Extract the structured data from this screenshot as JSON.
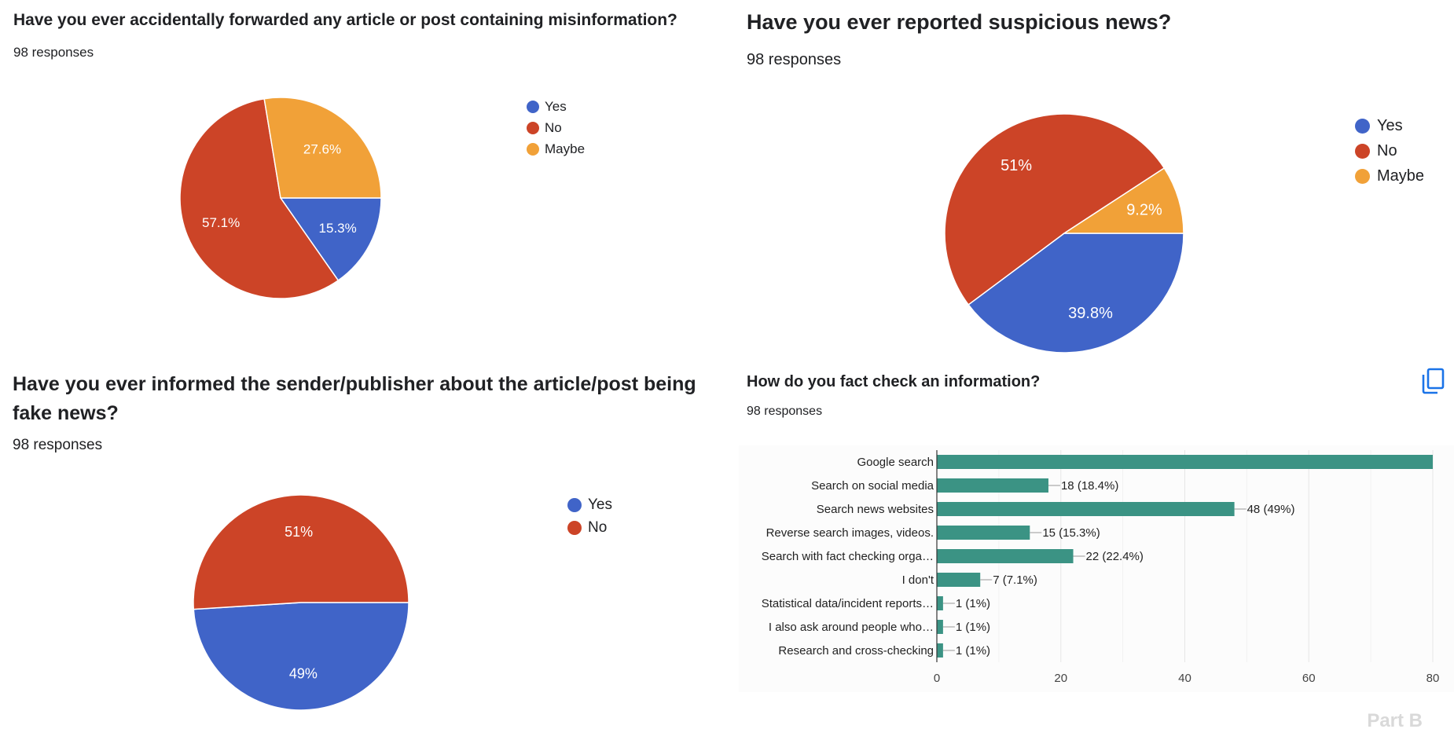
{
  "colors": {
    "yes": "#4064c8",
    "no": "#cc4427",
    "maybe": "#f1a138",
    "bar": "#3b9384"
  },
  "panels": [
    {
      "title": "Have you ever accidentally forwarded any article or post containing misinformation?",
      "responses": "98 responses"
    },
    {
      "title": "Have you ever reported suspicious news?",
      "responses": "98 responses"
    },
    {
      "title": "Have you ever informed the sender/publisher about the article/post being fake news?",
      "responses": "98 responses"
    },
    {
      "title": "How do you fact check an information?",
      "responses": "98 responses"
    }
  ],
  "copy_icon": "copy-icon",
  "footer": "Part B",
  "chart_data": [
    {
      "type": "pie",
      "categories": [
        "Yes",
        "No",
        "Maybe"
      ],
      "values": [
        15.3,
        57.1,
        27.6
      ],
      "labels": [
        "15.3%",
        "57.1%",
        "27.6%"
      ],
      "legend": "right"
    },
    {
      "type": "pie",
      "categories": [
        "Yes",
        "No",
        "Maybe"
      ],
      "values": [
        39.8,
        51,
        9.2
      ],
      "labels": [
        "39.8%",
        "51%",
        "9.2%"
      ],
      "legend": "right"
    },
    {
      "type": "pie",
      "categories": [
        "Yes",
        "No"
      ],
      "values": [
        49,
        51
      ],
      "labels": [
        "49%",
        "51%"
      ],
      "legend": "right"
    },
    {
      "type": "bar",
      "orientation": "horizontal",
      "categories": [
        "Google search",
        "Search on social media",
        "Search news websites",
        "Reverse search images, videos.",
        "Search with fact checking orga…",
        "I don't",
        "Statistical data/incident reports…",
        "I also ask around people who…",
        "Research and cross-checking"
      ],
      "values": [
        80,
        18,
        48,
        15,
        22,
        7,
        1,
        1,
        1
      ],
      "data_labels": [
        "",
        "18 (18.4%)",
        "48 (49%)",
        "15 (15.3%)",
        "22 (22.4%)",
        "7 (7.1%)",
        "1 (1%)",
        "1 (1%)",
        "1 (1%)"
      ],
      "xlim": [
        0,
        80
      ],
      "xticks": [
        0,
        20,
        40,
        60,
        80
      ],
      "grid": true
    }
  ]
}
